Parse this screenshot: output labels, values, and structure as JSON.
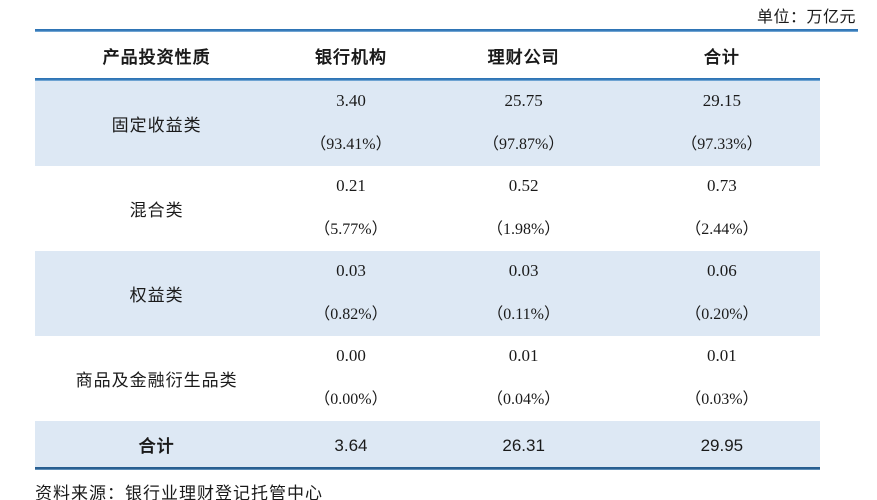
{
  "unit_label": "单位：万亿元",
  "header": {
    "col_label": "产品投资性质",
    "col_bank": "银行机构",
    "col_wmc": "理财公司",
    "col_total": "合计"
  },
  "rows": [
    {
      "label": "固定收益类",
      "bank": "3.40",
      "bank_pct": "（93.41%）",
      "wmc": "25.75",
      "wmc_pct": "（97.87%）",
      "total": "29.15",
      "total_pct": "（97.33%）"
    },
    {
      "label": "混合类",
      "bank": "0.21",
      "bank_pct": "（5.77%）",
      "wmc": "0.52",
      "wmc_pct": "（1.98%）",
      "total": "0.73",
      "total_pct": "（2.44%）"
    },
    {
      "label": "权益类",
      "bank": "0.03",
      "bank_pct": "（0.82%）",
      "wmc": "0.03",
      "wmc_pct": "（0.11%）",
      "total": "0.06",
      "total_pct": "（0.20%）"
    },
    {
      "label": "商品及金融衍生品类",
      "bank": "0.00",
      "bank_pct": "（0.00%）",
      "wmc": "0.01",
      "wmc_pct": "（0.04%）",
      "total": "0.01",
      "total_pct": "（0.03%）"
    }
  ],
  "total_row": {
    "label": "合计",
    "bank": "3.64",
    "wmc": "26.31",
    "total": "29.95"
  },
  "source": "资料来源：银行业理财登记托管中心",
  "colors": {
    "row_highlight": "#dde8f4",
    "rule_blue": "#2e74b5",
    "rule_blue_light": "#8ab7de",
    "rule_dark": "#275d8f",
    "text": "#1a1a1a"
  }
}
